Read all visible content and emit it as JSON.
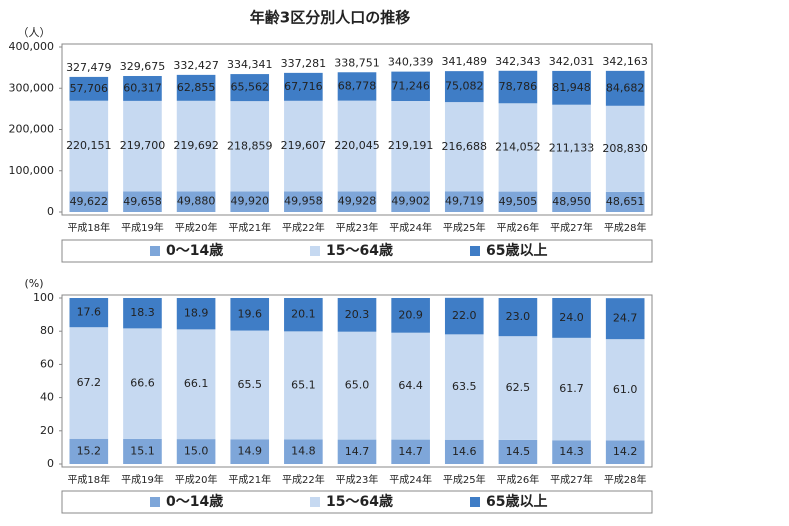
{
  "chart_data": [
    {
      "type": "bar",
      "stacked": true,
      "title": "年齢3区分別人口の推移",
      "ylabel": "（人）",
      "categories": [
        "平成18年",
        "平成19年",
        "平成20年",
        "平成21年",
        "平成22年",
        "平成23年",
        "平成24年",
        "平成25年",
        "平成26年",
        "平成27年",
        "平成28年"
      ],
      "series": [
        {
          "name": "0～14歳",
          "color": "#7ea6d9",
          "values": [
            49622,
            49658,
            49880,
            49920,
            49958,
            49928,
            49902,
            49719,
            49505,
            48950,
            48651
          ],
          "value_labels": [
            "49,622",
            "49,658",
            "49,880",
            "49,920",
            "49,958",
            "49,928",
            "49,902",
            "49,719",
            "49,505",
            "48,950",
            "48,651"
          ]
        },
        {
          "name": "15～64歳",
          "color": "#c6d9f1",
          "values": [
            220151,
            219700,
            219692,
            218859,
            219607,
            220045,
            219191,
            216688,
            214052,
            211133,
            208830
          ],
          "value_labels": [
            "220,151",
            "219,700",
            "219,692",
            "218,859",
            "219,607",
            "220,045",
            "219,191",
            "216,688",
            "214,052",
            "211,133",
            "208,830"
          ]
        },
        {
          "name": "65歳以上",
          "color": "#3f7dc6",
          "values": [
            57706,
            60317,
            62855,
            65562,
            67716,
            68778,
            71246,
            75082,
            78786,
            81948,
            84682
          ],
          "value_labels": [
            "57,706",
            "60,317",
            "62,855",
            "65,562",
            "67,716",
            "68,778",
            "71,246",
            "75,082",
            "78,786",
            "81,948",
            "84,682"
          ]
        }
      ],
      "totals": {
        "values": [
          327479,
          329675,
          332427,
          334341,
          337281,
          338751,
          340339,
          341489,
          342343,
          342031,
          342163
        ],
        "value_labels": [
          "327,479",
          "329,675",
          "332,427",
          "334,341",
          "337,281",
          "338,751",
          "340,339",
          "341,489",
          "342,343",
          "342,031",
          "342,163"
        ]
      },
      "ylim": [
        0,
        400000
      ],
      "yticks": [
        0,
        {
          "value": 100000,
          "label": "100,000"
        },
        {
          "value": 200000,
          "label": "200,000"
        },
        {
          "value": 300000,
          "label": "300,000"
        },
        {
          "value": 400000,
          "label": "400,000"
        }
      ]
    },
    {
      "type": "bar",
      "stacked": true,
      "ylabel": "(%)",
      "categories": [
        "平成18年",
        "平成19年",
        "平成20年",
        "平成21年",
        "平成22年",
        "平成23年",
        "平成24年",
        "平成25年",
        "平成26年",
        "平成27年",
        "平成28年"
      ],
      "series": [
        {
          "name": "0～14歳",
          "color": "#7ea6d9",
          "values": [
            15.2,
            15.1,
            15.0,
            14.9,
            14.8,
            14.7,
            14.7,
            14.6,
            14.5,
            14.3,
            14.2
          ],
          "value_labels": [
            "15.2",
            "15.1",
            "15.0",
            "14.9",
            "14.8",
            "14.7",
            "14.7",
            "14.6",
            "14.5",
            "14.3",
            "14.2"
          ]
        },
        {
          "name": "15～64歳",
          "color": "#c6d9f1",
          "values": [
            67.2,
            66.6,
            66.1,
            65.5,
            65.1,
            65.0,
            64.4,
            63.5,
            62.5,
            61.7,
            61.0
          ],
          "value_labels": [
            "67.2",
            "66.6",
            "66.1",
            "65.5",
            "65.1",
            "65.0",
            "64.4",
            "63.5",
            "62.5",
            "61.7",
            "61.0"
          ]
        },
        {
          "name": "65歳以上",
          "color": "#3f7dc6",
          "values": [
            17.6,
            18.3,
            18.9,
            19.6,
            20.1,
            20.3,
            20.9,
            22.0,
            23.0,
            24.0,
            24.7
          ],
          "value_labels": [
            "17.6",
            "18.3",
            "18.9",
            "19.6",
            "20.1",
            "20.3",
            "20.9",
            "22.0",
            "23.0",
            "24.0",
            "24.7"
          ]
        }
      ],
      "ylim": [
        0,
        100
      ],
      "yticks": [
        0,
        20,
        40,
        60,
        80,
        100
      ]
    }
  ]
}
